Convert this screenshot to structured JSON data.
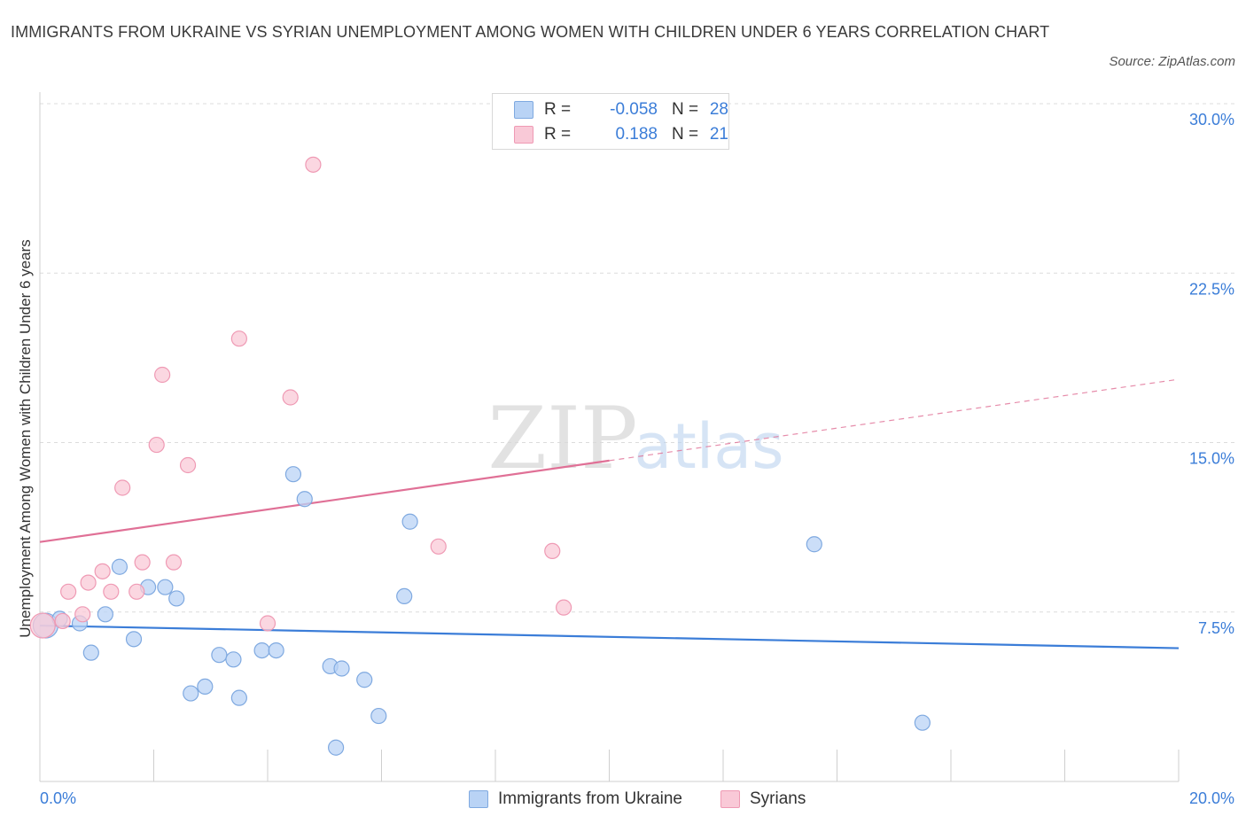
{
  "title": "IMMIGRANTS FROM UKRAINE VS SYRIAN UNEMPLOYMENT AMONG WOMEN WITH CHILDREN UNDER 6 YEARS CORRELATION CHART",
  "source": "Source: ZipAtlas.com",
  "watermark": {
    "zip": "ZIP",
    "atlas": "atlas"
  },
  "legend": {
    "rows": [
      {
        "r_label": "R =",
        "r_value": "-0.058",
        "n_label": "N =",
        "n_value": "28"
      },
      {
        "r_label": "R =",
        "r_value": "0.188",
        "n_label": "N =",
        "n_value": "21"
      }
    ]
  },
  "colors": {
    "blue_fill": "#b9d3f5",
    "blue_stroke": "#7fa9e0",
    "blue_line": "#3b7dd8",
    "pink_fill": "#f9c9d7",
    "pink_stroke": "#ef9ab4",
    "pink_line": "#e07096",
    "grid": "#dcdcdc",
    "tick_label": "#3b7dd8"
  },
  "chart_data": {
    "type": "scatter",
    "title": "IMMIGRANTS FROM UKRAINE VS SYRIAN UNEMPLOYMENT AMONG WOMEN WITH CHILDREN UNDER 6 YEARS CORRELATION CHART",
    "xlabel": "",
    "ylabel": "Unemployment Among Women with Children Under 6 years",
    "xlim": [
      0,
      20
    ],
    "ylim": [
      0,
      30
    ],
    "x_tick_labels": [
      "0.0%",
      "20.0%"
    ],
    "y_ticks": [
      7.5,
      15,
      22.5,
      30
    ],
    "y_tick_labels": [
      "7.5%",
      "15.0%",
      "22.5%",
      "30.0%"
    ],
    "grid": true,
    "series": [
      {
        "name": "Immigrants from Ukraine",
        "color": "blue",
        "R": -0.058,
        "N": 28,
        "points": [
          [
            0.1,
            6.9
          ],
          [
            0.35,
            7.2
          ],
          [
            0.7,
            7.0
          ],
          [
            0.9,
            5.7
          ],
          [
            1.15,
            7.4
          ],
          [
            1.4,
            9.5
          ],
          [
            1.65,
            6.3
          ],
          [
            1.9,
            8.6
          ],
          [
            2.2,
            8.6
          ],
          [
            2.4,
            8.1
          ],
          [
            2.65,
            3.9
          ],
          [
            2.9,
            4.2
          ],
          [
            3.15,
            5.6
          ],
          [
            3.4,
            5.4
          ],
          [
            3.5,
            3.7
          ],
          [
            3.9,
            5.8
          ],
          [
            4.15,
            5.8
          ],
          [
            4.45,
            13.6
          ],
          [
            4.65,
            12.5
          ],
          [
            5.1,
            5.1
          ],
          [
            5.3,
            5.0
          ],
          [
            5.7,
            4.5
          ],
          [
            5.95,
            2.9
          ],
          [
            5.2,
            1.5
          ],
          [
            6.4,
            8.2
          ],
          [
            6.5,
            11.5
          ],
          [
            13.6,
            10.5
          ],
          [
            15.5,
            2.6
          ]
        ],
        "trend": {
          "x": [
            0,
            20
          ],
          "y": [
            6.9,
            5.9
          ],
          "style": "solid"
        }
      },
      {
        "name": "Syrians",
        "color": "pink",
        "R": 0.188,
        "N": 21,
        "points": [
          [
            0.05,
            6.9
          ],
          [
            0.4,
            7.1
          ],
          [
            0.5,
            8.4
          ],
          [
            0.75,
            7.4
          ],
          [
            0.85,
            8.8
          ],
          [
            1.1,
            9.3
          ],
          [
            1.25,
            8.4
          ],
          [
            1.45,
            13.0
          ],
          [
            1.7,
            8.4
          ],
          [
            1.8,
            9.7
          ],
          [
            2.05,
            14.9
          ],
          [
            2.15,
            18.0
          ],
          [
            2.35,
            9.7
          ],
          [
            2.6,
            14.0
          ],
          [
            3.5,
            19.6
          ],
          [
            4.0,
            7.0
          ],
          [
            4.4,
            17.0
          ],
          [
            4.8,
            27.3
          ],
          [
            7.0,
            10.4
          ],
          [
            9.0,
            10.2
          ],
          [
            9.2,
            7.7
          ]
        ],
        "trend": {
          "x": [
            0,
            10
          ],
          "y": [
            10.6,
            14.2
          ],
          "style": "solid",
          "extension": {
            "x": [
              10,
              20
            ],
            "y": [
              14.2,
              17.8
            ],
            "style": "dashed"
          }
        }
      }
    ]
  },
  "bottom_legend": {
    "items": [
      {
        "label": "Immigrants from Ukraine"
      },
      {
        "label": "Syrians"
      }
    ]
  }
}
